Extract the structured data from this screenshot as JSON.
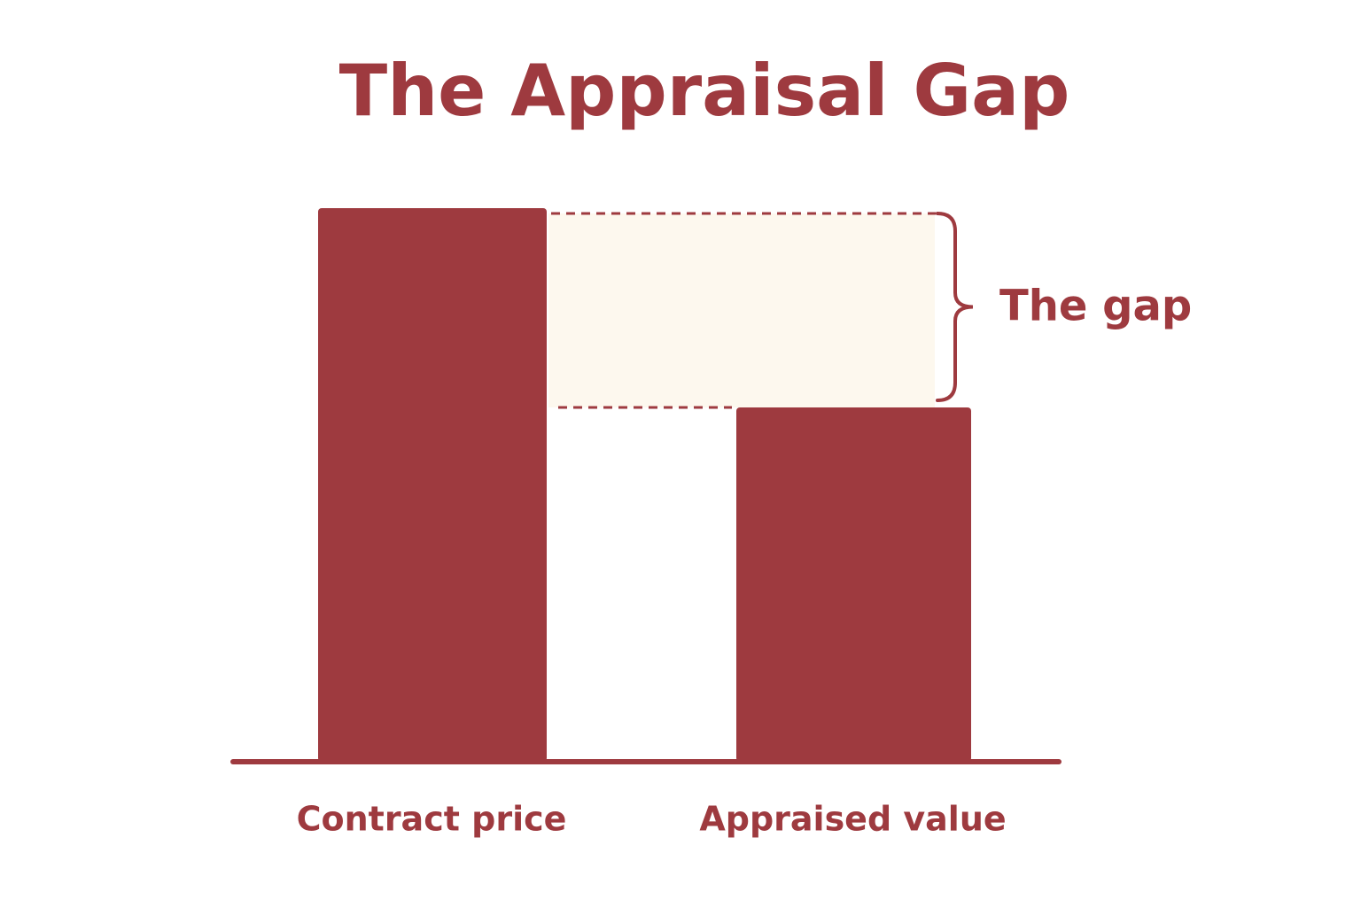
{
  "chart_data": {
    "type": "bar",
    "title": "The Appraisal Gap",
    "categories": [
      "Contract price",
      "Appraised value"
    ],
    "values": [
      100,
      64
    ],
    "color": "#9e3a3f",
    "ylim": [
      0,
      100
    ],
    "annotation": "The gap",
    "gap_color": "#fdf8ee"
  }
}
